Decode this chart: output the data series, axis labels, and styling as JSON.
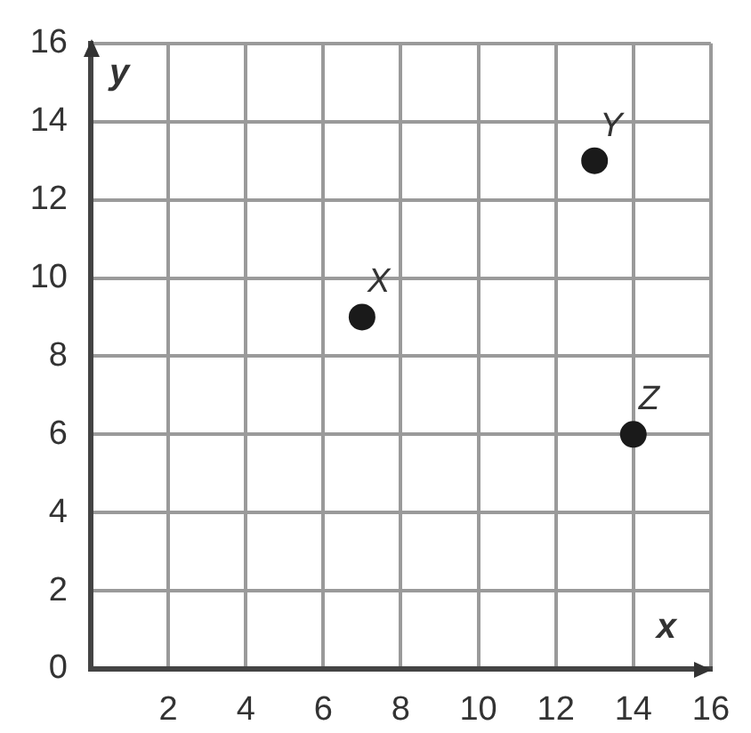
{
  "chart_data": {
    "type": "scatter",
    "xlabel": "x",
    "ylabel": "y",
    "x": [
      7,
      13,
      14
    ],
    "values": [
      9,
      13,
      6
    ],
    "color": "#1a1a1a",
    "xlim": [
      0,
      16
    ],
    "ylim": [
      0,
      16
    ],
    "xticks": [
      2,
      4,
      6,
      8,
      10,
      12,
      14,
      16
    ],
    "yticks": [
      0,
      2,
      4,
      6,
      8,
      10,
      12,
      14,
      16
    ],
    "grid": true,
    "marker": "circle",
    "legend": false,
    "annotations": [
      {
        "text": "X",
        "x": 7,
        "y": 9
      },
      {
        "text": "Y",
        "x": 13,
        "y": 13
      },
      {
        "text": "Z",
        "x": 14,
        "y": 6
      }
    ]
  }
}
